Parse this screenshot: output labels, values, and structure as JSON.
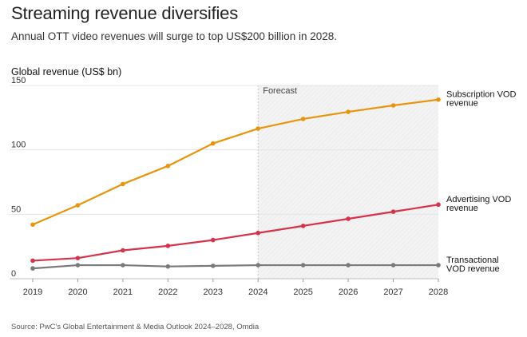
{
  "header": {
    "title": "Streaming revenue diversifies",
    "subtitle": "Annual OTT video revenues will surge to top US$200 billion in 2028."
  },
  "footer": {
    "source": "Source: PwC's Global Entertainment & Media Outlook 2024–2028, Omdia"
  },
  "colors": {
    "subscription": "#E8950E",
    "advertising": "#D6334A",
    "transactional": "#7A7A7A",
    "grid": "#e4e4e4",
    "forecast_shade": "#f1f1f1"
  },
  "chart_data": {
    "type": "line",
    "title": "Streaming revenue diversifies",
    "ylabel": "Global revenue (US$ bn)",
    "xlabel": "",
    "x": [
      "2019",
      "2020",
      "2021",
      "2022",
      "2023",
      "2024",
      "2025",
      "2026",
      "2027",
      "2028"
    ],
    "ylim": [
      0,
      150
    ],
    "yticks": [
      0,
      50,
      100,
      150
    ],
    "forecast_start": "2024",
    "forecast_label": "Forecast",
    "grid": true,
    "series": [
      {
        "name": "Subscription VOD revenue",
        "label_lines": [
          "Subscription VOD",
          "revenue"
        ],
        "color_key": "subscription",
        "values": [
          42,
          57,
          73.5,
          87.5,
          105,
          116.5,
          124,
          129.5,
          134.5,
          139
        ]
      },
      {
        "name": "Advertising VOD revenue",
        "label_lines": [
          "Advertising VOD",
          "revenue"
        ],
        "color_key": "advertising",
        "values": [
          14,
          16,
          22,
          25.5,
          30,
          35.5,
          41,
          46.5,
          52,
          57.5
        ]
      },
      {
        "name": "Transactional VOD revenue",
        "label_lines": [
          "Transactional",
          "VOD revenue"
        ],
        "color_key": "transactional",
        "values": [
          8,
          10.5,
          10.5,
          9.5,
          10,
          10.5,
          10.5,
          10.5,
          10.5,
          10.5
        ]
      }
    ]
  }
}
